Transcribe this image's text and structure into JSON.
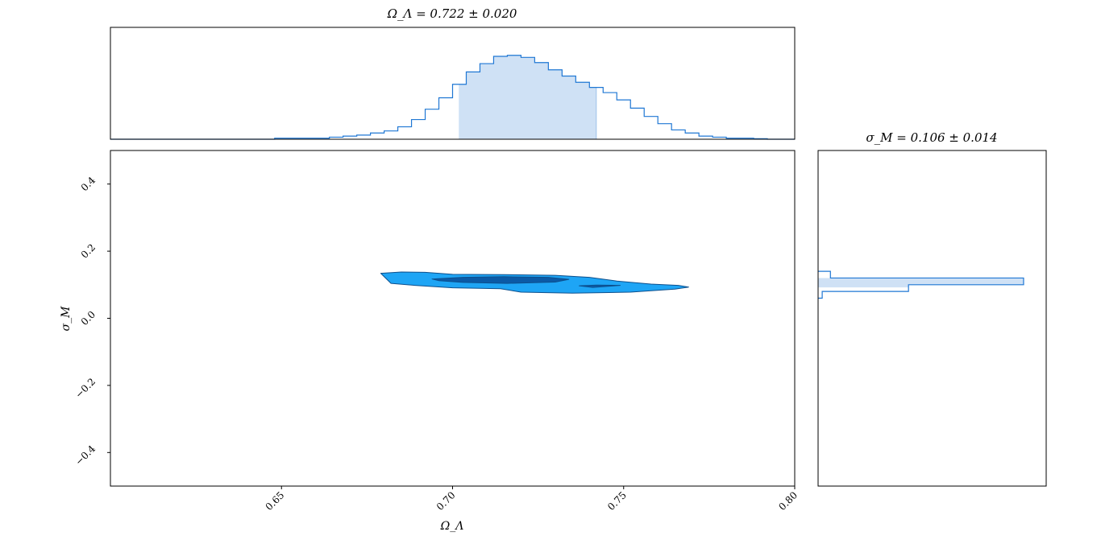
{
  "chart_data": [
    {
      "type": "area",
      "panel": "marginal-top",
      "title": "Ω_Λ = 0.722 ± 0.020",
      "xlim": [
        0.6,
        0.8
      ],
      "ylim": [
        0,
        1.08
      ],
      "shaded_interval": [
        0.702,
        0.742
      ],
      "colors": {
        "line": "#1f77d4",
        "fill": "#cfe1f5"
      },
      "bins": {
        "edges": [
          0.6,
          0.604,
          0.608,
          0.612,
          0.616,
          0.62,
          0.624,
          0.628,
          0.632,
          0.636,
          0.64,
          0.644,
          0.648,
          0.652,
          0.656,
          0.66,
          0.664,
          0.668,
          0.672,
          0.676,
          0.68,
          0.684,
          0.688,
          0.692,
          0.696,
          0.7,
          0.704,
          0.708,
          0.712,
          0.716,
          0.72,
          0.724,
          0.728,
          0.732,
          0.736,
          0.74,
          0.744,
          0.748,
          0.752,
          0.756,
          0.76,
          0.764,
          0.768,
          0.772,
          0.776,
          0.78,
          0.784,
          0.788,
          0.792,
          0.796,
          0.8
        ],
        "counts": [
          0,
          0,
          0,
          0,
          0,
          0,
          0,
          0,
          0,
          0,
          0,
          0,
          0.01,
          0.01,
          0.01,
          0.01,
          0.02,
          0.03,
          0.04,
          0.06,
          0.08,
          0.12,
          0.19,
          0.29,
          0.4,
          0.53,
          0.65,
          0.73,
          0.8,
          0.81,
          0.79,
          0.74,
          0.67,
          0.61,
          0.55,
          0.5,
          0.45,
          0.38,
          0.3,
          0.22,
          0.15,
          0.09,
          0.06,
          0.03,
          0.02,
          0.01,
          0.01,
          0.005,
          0,
          0
        ]
      }
    },
    {
      "type": "heatmap",
      "panel": "joint",
      "xlabel": "Ω_Λ",
      "ylabel": "σ_M",
      "xlim": [
        0.6,
        0.8
      ],
      "ylim": [
        -0.5,
        0.5
      ],
      "xticks": [
        0.65,
        0.7,
        0.75,
        0.8
      ],
      "xtick_labels": [
        "0.65",
        "0.70",
        "0.75",
        "0.80"
      ],
      "yticks": [
        0.4,
        0.2,
        0.0,
        -0.2,
        -0.4
      ],
      "ytick_labels": [
        "0.4",
        "0.2",
        "0.0",
        "−0.2",
        "−0.4"
      ],
      "colors": {
        "outer": "#1ea5f5",
        "inner": "#0b5aa6",
        "edge": "#0d4f8c"
      },
      "contours": [
        {
          "level": "95%",
          "points": [
            [
              0.679,
              0.134
            ],
            [
              0.685,
              0.138
            ],
            [
              0.692,
              0.137
            ],
            [
              0.7,
              0.131
            ],
            [
              0.715,
              0.13
            ],
            [
              0.73,
              0.128
            ],
            [
              0.74,
              0.122
            ],
            [
              0.748,
              0.111
            ],
            [
              0.758,
              0.102
            ],
            [
              0.766,
              0.098
            ],
            [
              0.769,
              0.093
            ],
            [
              0.765,
              0.087
            ],
            [
              0.752,
              0.078
            ],
            [
              0.735,
              0.075
            ],
            [
              0.72,
              0.078
            ],
            [
              0.714,
              0.088
            ],
            [
              0.7,
              0.091
            ],
            [
              0.689,
              0.098
            ],
            [
              0.682,
              0.104
            ]
          ]
        },
        {
          "level": "68%",
          "points": [
            [
              0.694,
              0.117
            ],
            [
              0.703,
              0.122
            ],
            [
              0.715,
              0.124
            ],
            [
              0.728,
              0.122
            ],
            [
              0.734,
              0.116
            ],
            [
              0.73,
              0.108
            ],
            [
              0.716,
              0.104
            ],
            [
              0.703,
              0.107
            ],
            [
              0.696,
              0.112
            ]
          ]
        },
        {
          "level": "68%",
          "points": [
            [
              0.737,
              0.097
            ],
            [
              0.742,
              0.099
            ],
            [
              0.749,
              0.098
            ],
            [
              0.741,
              0.092
            ]
          ]
        }
      ]
    },
    {
      "type": "bar",
      "panel": "marginal-right",
      "orientation": "horizontal",
      "title": "σ_M = 0.106 ± 0.014",
      "ylim": [
        -0.5,
        0.5
      ],
      "xlim": [
        0,
        1.11
      ],
      "shaded_interval": [
        0.092,
        0.12
      ],
      "colors": {
        "line": "#1f77d4",
        "fill": "#cfe1f5"
      },
      "bins": {
        "edges": [
          0.06,
          0.08,
          0.1,
          0.12,
          0.14
        ],
        "counts": [
          0.02,
          0.44,
          1.0,
          0.06
        ]
      }
    }
  ]
}
